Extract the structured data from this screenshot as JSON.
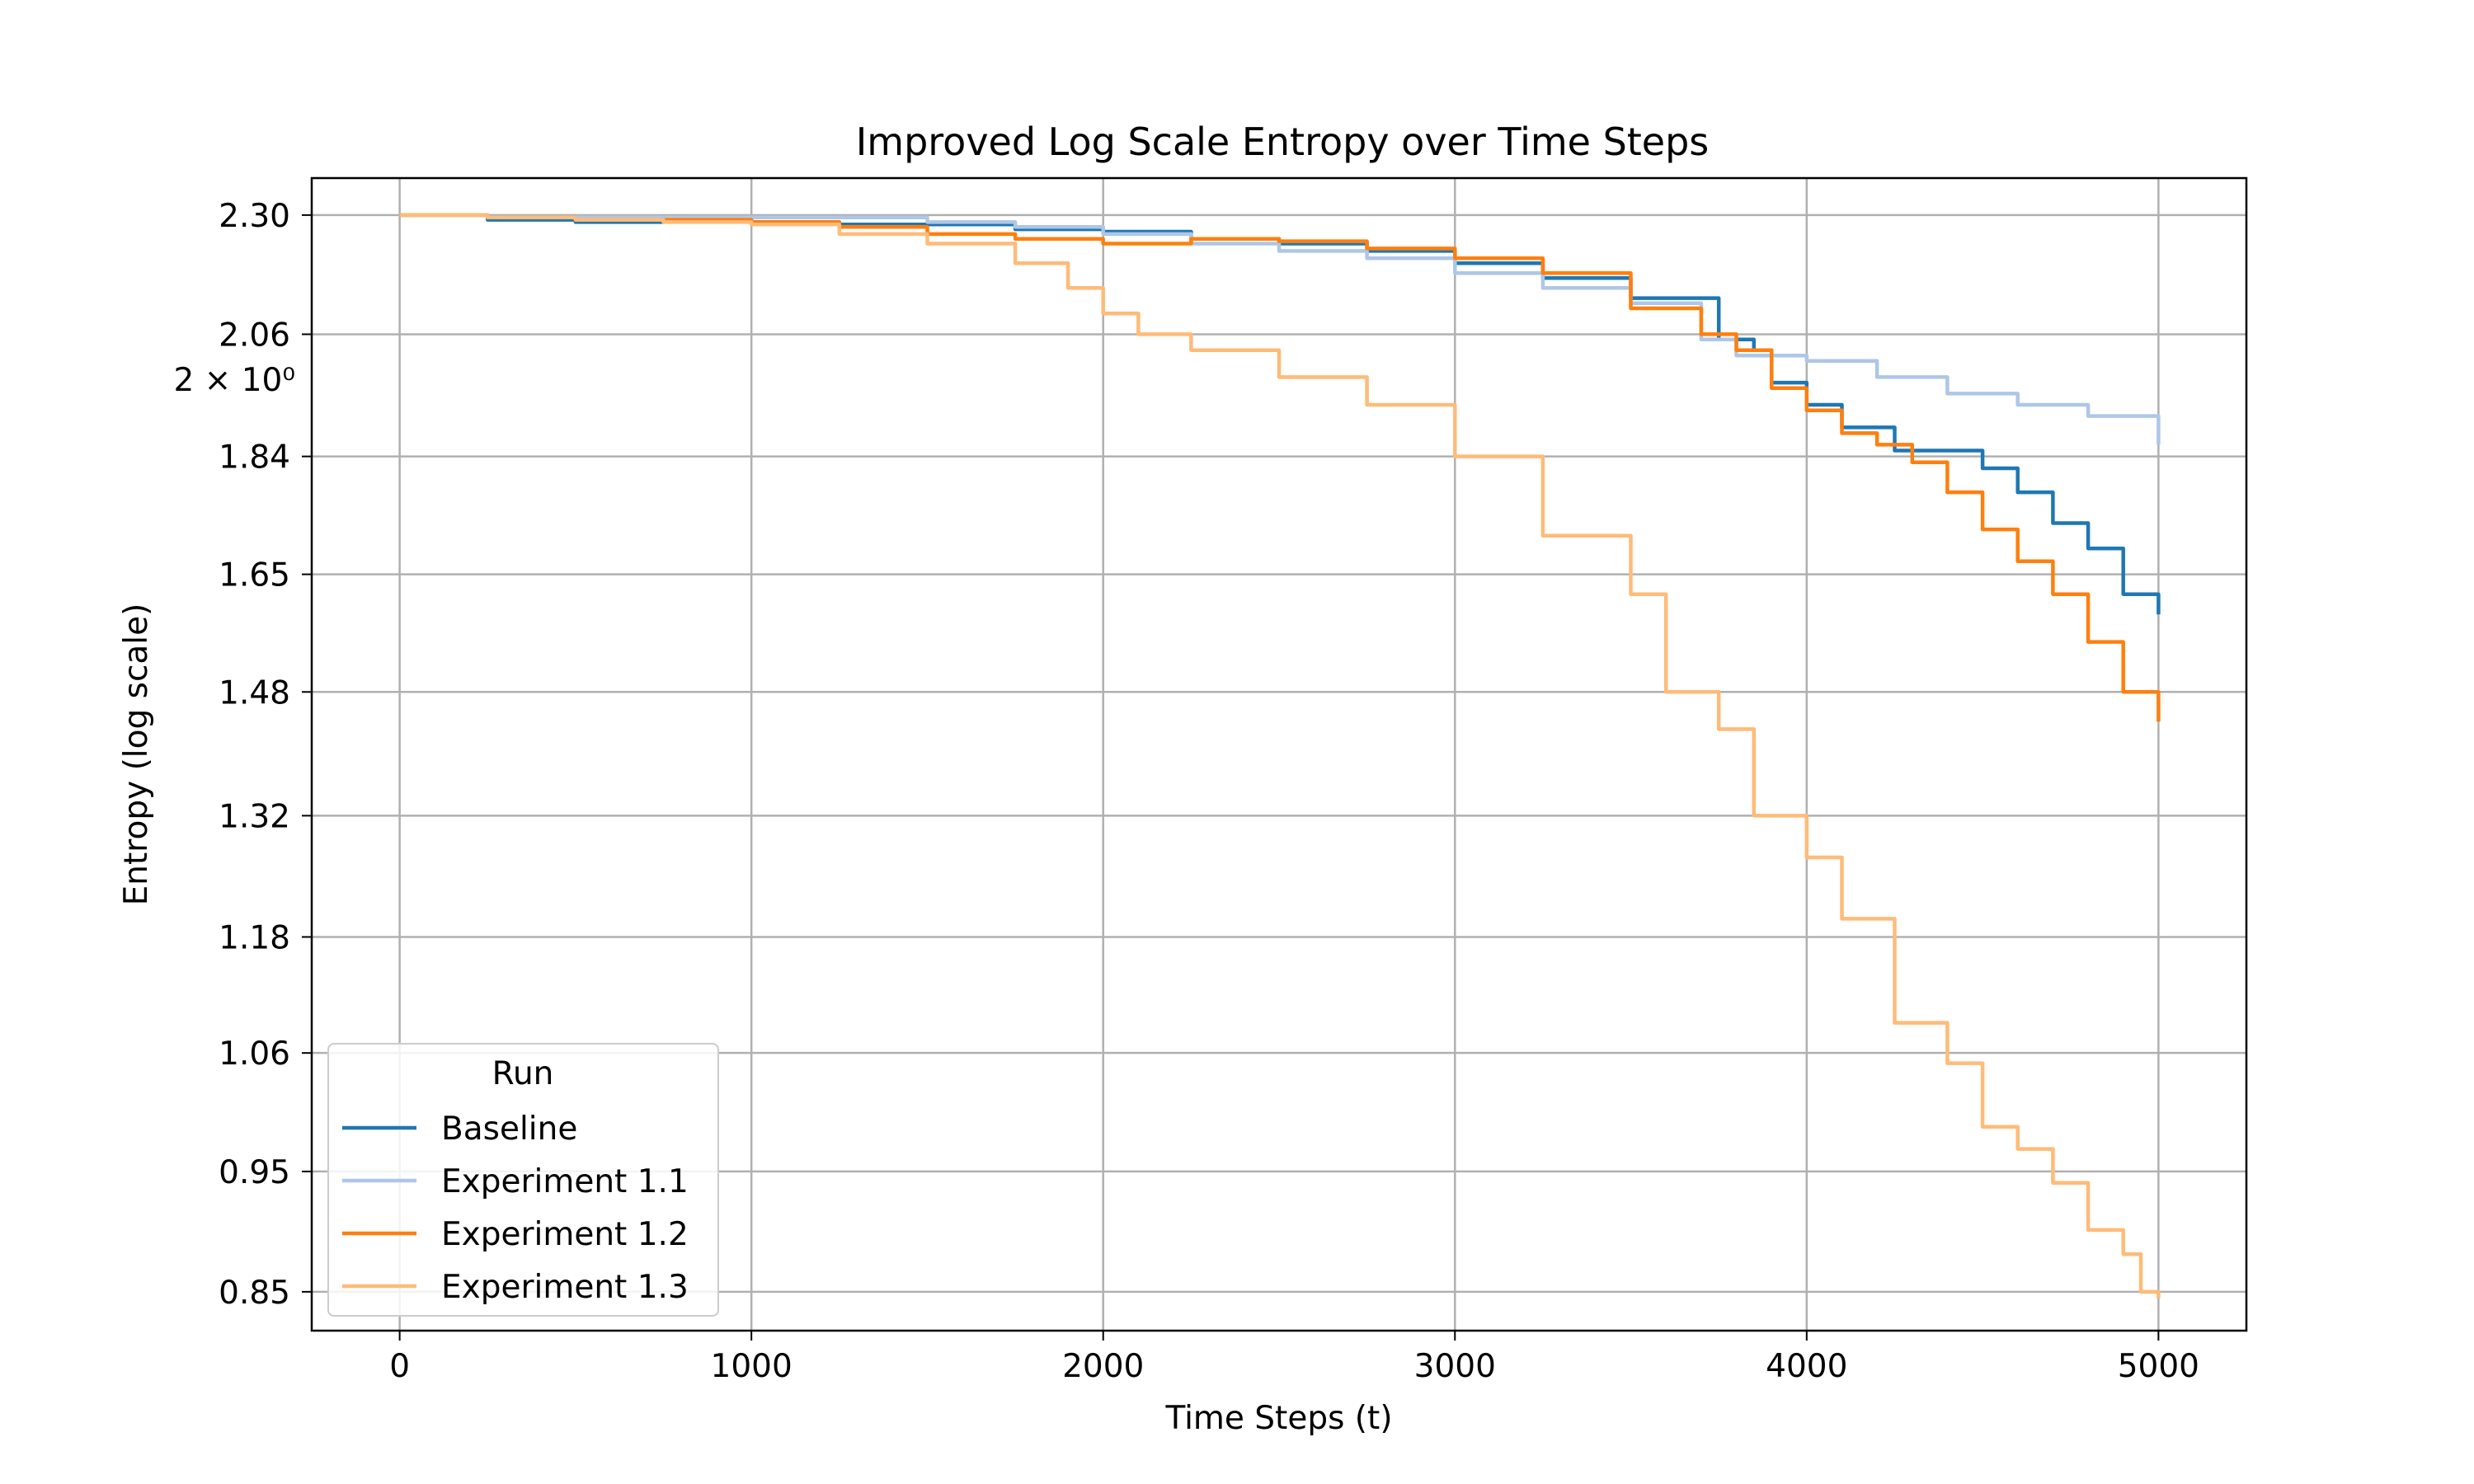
{
  "chart_data": {
    "type": "line",
    "title": "Improved Log Scale Entropy over Time Steps",
    "xlabel": "Time Steps (t)",
    "ylabel": "Entropy (log scale)",
    "yscale": "log",
    "xlim": [
      -250,
      5250
    ],
    "ylim": [
      0.82,
      2.38
    ],
    "grid": true,
    "xticks": [
      0,
      1000,
      2000,
      3000,
      4000,
      5000
    ],
    "xtick_labels": [
      "0",
      "1000",
      "2000",
      "3000",
      "4000",
      "5000"
    ],
    "yticks": [
      0.85,
      0.95,
      1.06,
      1.18,
      1.32,
      1.48,
      1.65,
      1.84,
      2.06,
      2.3
    ],
    "ytick_labels": [
      "0.85",
      "0.95",
      "1.06",
      "1.18",
      "1.32",
      "1.48",
      "1.65",
      "1.84",
      "2.06",
      "2.30"
    ],
    "y_extra_label": "2 × 10⁰",
    "legend": {
      "title": "Run",
      "placement": "lower-left"
    },
    "series": [
      {
        "name": "Baseline",
        "color": "#1f77b4",
        "x": [
          0,
          250,
          500,
          750,
          1000,
          1250,
          1500,
          1750,
          2000,
          2250,
          2500,
          2750,
          3000,
          3250,
          3500,
          3750,
          3850,
          3900,
          4000,
          4100,
          4250,
          4400,
          4500,
          4600,
          4700,
          4800,
          4900,
          5000
        ],
        "y": [
          2.3,
          2.29,
          2.285,
          2.29,
          2.285,
          2.28,
          2.28,
          2.27,
          2.265,
          2.25,
          2.24,
          2.225,
          2.2,
          2.17,
          2.13,
          2.05,
          2.03,
          1.97,
          1.93,
          1.89,
          1.85,
          1.85,
          1.82,
          1.78,
          1.73,
          1.69,
          1.62,
          1.59
        ]
      },
      {
        "name": "Experiment 1.1",
        "color": "#aec7e8",
        "x": [
          0,
          250,
          500,
          750,
          1000,
          1250,
          1500,
          1750,
          2000,
          2250,
          2500,
          2750,
          3000,
          3250,
          3500,
          3700,
          3800,
          4000,
          4200,
          4400,
          4600,
          4800,
          5000
        ],
        "y": [
          2.3,
          2.295,
          2.295,
          2.295,
          2.295,
          2.295,
          2.285,
          2.275,
          2.26,
          2.24,
          2.225,
          2.21,
          2.18,
          2.15,
          2.12,
          2.05,
          2.02,
          2.01,
          1.98,
          1.95,
          1.93,
          1.91,
          1.86
        ]
      },
      {
        "name": "Experiment 1.2",
        "color": "#ff7f0e",
        "x": [
          0,
          250,
          500,
          750,
          1000,
          1250,
          1500,
          1750,
          2000,
          2250,
          2500,
          2750,
          3000,
          3250,
          3500,
          3700,
          3800,
          3900,
          4000,
          4100,
          4200,
          4300,
          4400,
          4500,
          4600,
          4700,
          4800,
          4900,
          5000
        ],
        "y": [
          2.3,
          2.295,
          2.29,
          2.29,
          2.285,
          2.275,
          2.26,
          2.25,
          2.24,
          2.25,
          2.245,
          2.23,
          2.21,
          2.18,
          2.11,
          2.06,
          2.03,
          1.96,
          1.92,
          1.88,
          1.86,
          1.83,
          1.78,
          1.72,
          1.67,
          1.62,
          1.55,
          1.48,
          1.44
        ]
      },
      {
        "name": "Experiment 1.3",
        "color": "#ffbb78",
        "x": [
          0,
          250,
          500,
          750,
          1000,
          1250,
          1500,
          1750,
          1900,
          2000,
          2100,
          2250,
          2500,
          2750,
          3000,
          3250,
          3500,
          3600,
          3750,
          3850,
          4000,
          4100,
          4250,
          4400,
          4500,
          4600,
          4700,
          4800,
          4900,
          4950,
          5000
        ],
        "y": [
          2.3,
          2.295,
          2.29,
          2.285,
          2.28,
          2.26,
          2.24,
          2.2,
          2.15,
          2.1,
          2.06,
          2.03,
          1.98,
          1.93,
          1.84,
          1.71,
          1.62,
          1.48,
          1.43,
          1.32,
          1.27,
          1.2,
          1.09,
          1.05,
          0.99,
          0.97,
          0.94,
          0.9,
          0.88,
          0.85,
          0.845
        ]
      }
    ]
  }
}
